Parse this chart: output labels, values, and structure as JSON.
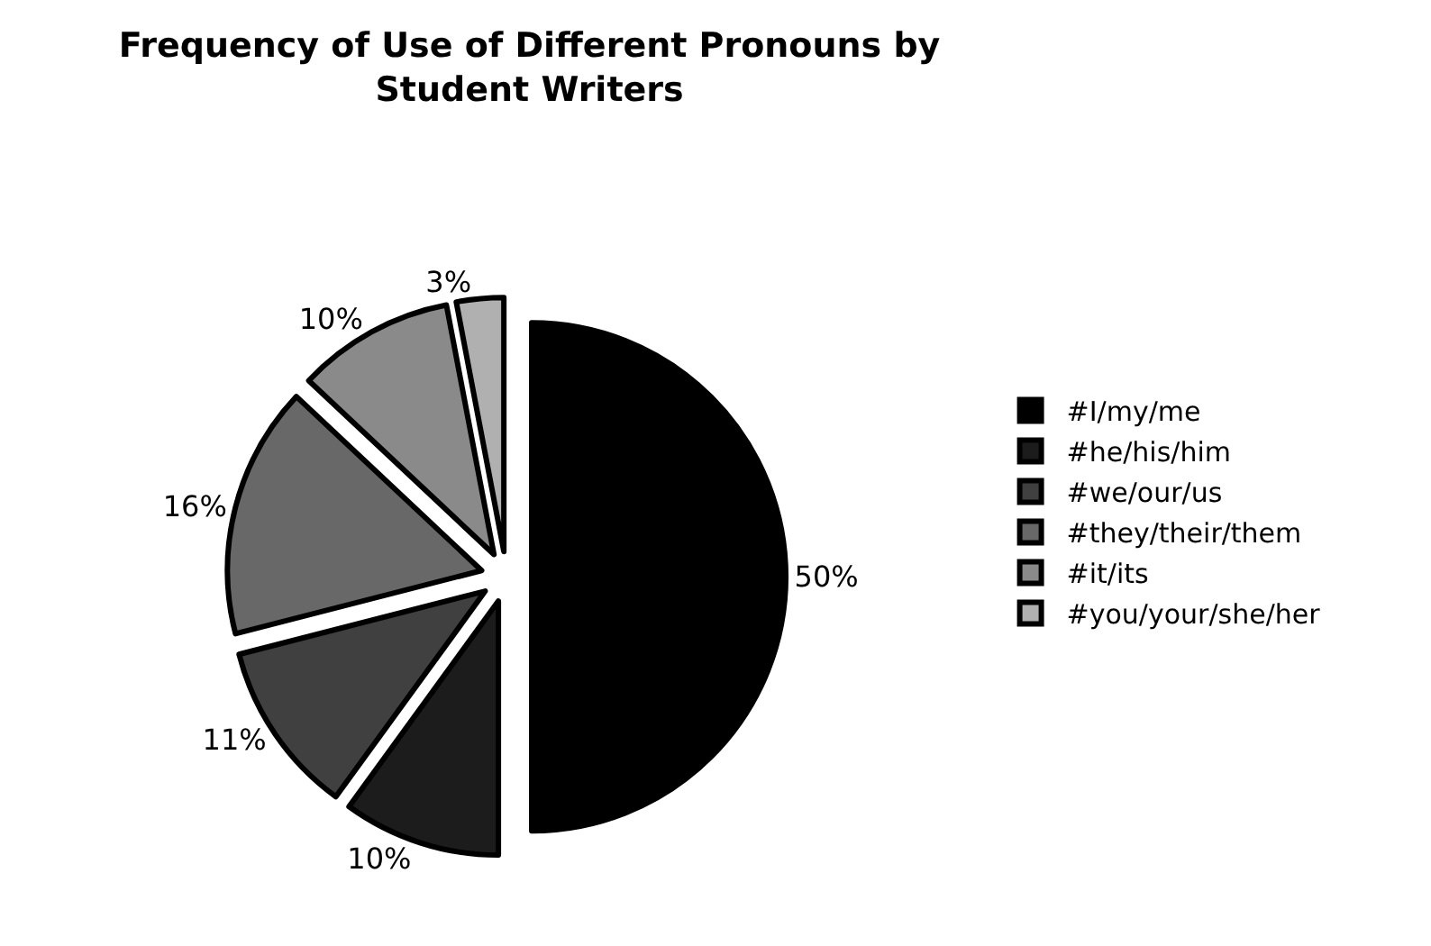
{
  "chart_data": {
    "type": "pie",
    "title": "Frequency of Use of Different Pronouns by Student Writers",
    "categories": [
      "#I/my/me",
      "#he/his/him",
      "#we/our/us",
      "#they/their/them",
      "#it/its",
      "#you/your/she/her"
    ],
    "values": [
      50,
      10,
      11,
      16,
      10,
      3
    ],
    "colors": [
      "#000000",
      "#1c1c1c",
      "#404040",
      "#686868",
      "#8a8a8a",
      "#b0b0b0"
    ],
    "value_labels": [
      "50%",
      "10%",
      "11%",
      "16%",
      "10%",
      "3%"
    ],
    "legend": "right"
  }
}
